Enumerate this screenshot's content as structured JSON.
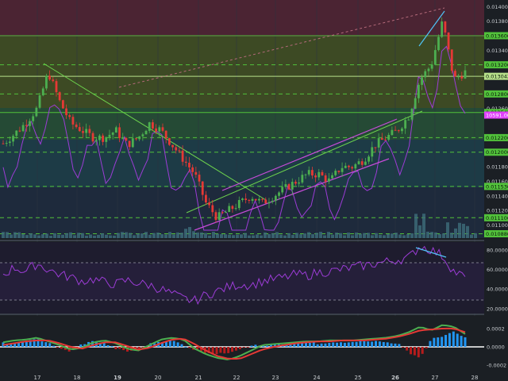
{
  "chart_data": [
    {
      "panel": "price",
      "type": "candlestick",
      "x_ticks": [
        "17",
        "18",
        "19",
        "20",
        "21",
        "22",
        "23",
        "24",
        "25",
        "26",
        "27",
        "28"
      ],
      "y_ticks": [
        "0.014000",
        "0.013800",
        "0.013600",
        "0.013400",
        "0.013200",
        "0.012800",
        "0.012600",
        "0.012200",
        "0.012000",
        "0.011800",
        "0.011600",
        "0.011400",
        "0.011200",
        "0.011000"
      ],
      "ylim": [
        0.01082,
        0.01409
      ],
      "horizontal_levels": [
        {
          "label": "0.013600",
          "value": 0.0136,
          "color": "#52c23b",
          "style": "solid"
        },
        {
          "label": "0.013042",
          "value": 0.013042,
          "color": "#b7e08a",
          "style": "solid"
        },
        {
          "label": "0.013200",
          "value": 0.0132,
          "color": "#52c23b",
          "style": "dashed"
        },
        {
          "label": "0.012800",
          "value": 0.0128,
          "color": "#52c23b",
          "style": "dashed"
        },
        {
          "label": "0.012545",
          "value": 0.012545,
          "color": "#52c23b",
          "style": "solid"
        },
        {
          "label": "0.012200",
          "value": 0.0122,
          "color": "#52c23b",
          "style": "dashed"
        },
        {
          "label": "0.012000",
          "value": 0.012,
          "color": "#52c23b",
          "style": "dashed"
        },
        {
          "label": "0.011530",
          "value": 0.01153,
          "color": "#52c23b",
          "style": "dashed"
        },
        {
          "label": "0.011100",
          "value": 0.0111,
          "color": "#52c23b",
          "style": "dashed"
        },
        {
          "label": "0.010880",
          "value": 0.01088,
          "color": "#52c23b",
          "style": "dashed"
        }
      ],
      "indicator_label": {
        "label": "10591.00",
        "color": "#e040fb"
      },
      "close_series": [
        0.01212,
        0.01225,
        0.0124,
        0.0126,
        0.0131,
        0.0127,
        0.0124,
        0.0123,
        0.0122,
        0.0122,
        0.0123,
        0.0121,
        0.0122,
        0.0124,
        0.0123,
        0.0121,
        0.0119,
        0.0117,
        0.0113,
        0.0111,
        0.0112,
        0.0113,
        0.0114,
        0.0113,
        0.0114,
        0.0115,
        0.0116,
        0.0117,
        0.0117,
        0.0116,
        0.0118,
        0.0118,
        0.0119,
        0.0121,
        0.0122,
        0.0123,
        0.0125,
        0.013,
        0.0132,
        0.0138,
        0.013,
        0.0131
      ]
    },
    {
      "panel": "rsi",
      "type": "line",
      "y_ticks": [
        "80.0000",
        "60.0000",
        "40.0000",
        "20.0000"
      ],
      "ylim": [
        15,
        88
      ],
      "levels": [
        70,
        30
      ],
      "values": [
        55,
        62,
        58,
        66,
        60,
        55,
        52,
        48,
        50,
        47,
        45,
        49,
        46,
        44,
        40,
        35,
        30,
        28,
        34,
        38,
        42,
        45,
        44,
        48,
        50,
        52,
        55,
        54,
        57,
        58,
        60,
        62,
        64,
        66,
        68,
        70,
        72,
        84,
        80,
        74,
        58,
        52
      ]
    },
    {
      "panel": "macd",
      "type": "histogram+line",
      "y_ticks": [
        "0.0002",
        "0.0000",
        "-0.0002"
      ],
      "ylim": [
        -0.00027,
        0.00028
      ],
      "histogram": [
        4e-05,
        3e-05,
        6e-05,
        8e-05,
        5e-05,
        -2e-05,
        -5e-05,
        3e-05,
        6e-05,
        4e-05,
        -2e-05,
        -5e-05,
        -3e-05,
        3e-05,
        6e-05,
        7e-05,
        2e-05,
        -3e-05,
        -6e-05,
        -8e-05,
        -6e-05,
        -2e-05,
        2e-05,
        1e-05,
        3e-05,
        2e-05,
        4e-05,
        5e-05,
        3e-05,
        4e-05,
        5e-05,
        6e-05,
        7e-05,
        6e-05,
        5e-05,
        4e-05,
        -6e-05,
        -0.00012,
        8e-05,
        0.00012,
        0.00016,
        0.0001
      ],
      "macd_line": [
        5e-05,
        7e-05,
        8e-05,
        0.0001,
        6e-05,
        2e-05,
        -3e-05,
        -1e-05,
        5e-05,
        7e-05,
        4e-05,
        -2e-05,
        -4e-05,
        2e-05,
        8e-05,
        0.0001,
        8e-05,
        -2e-05,
        -8e-05,
        -0.00012,
        -0.00014,
        -0.0001,
        -4e-05,
        2e-05,
        3e-05,
        4e-05,
        5e-05,
        6e-05,
        6e-05,
        7e-05,
        7e-05,
        7e-05,
        8e-05,
        9e-05,
        0.0001,
        0.00012,
        0.00016,
        0.00022,
        0.00018,
        0.00024,
        0.00022,
        0.00014
      ],
      "signal_line": [
        2e-05,
        4e-05,
        6e-05,
        7e-05,
        7e-05,
        4e-05,
        0.0,
        -2e-05,
        2e-05,
        5e-05,
        5e-05,
        1e-05,
        -3e-05,
        -1e-05,
        4e-05,
        8e-05,
        9e-05,
        3e-05,
        -4e-05,
        -0.0001,
        -0.00013,
        -0.00013,
        -8e-05,
        -3e-05,
        0.0,
        2e-05,
        4e-05,
        5e-05,
        6e-05,
        6e-05,
        7e-05,
        7e-05,
        7e-05,
        8e-05,
        9e-05,
        0.00011,
        0.00014,
        0.00018,
        0.00019,
        0.0002,
        0.0002,
        0.00016
      ]
    }
  ],
  "colors": {
    "bull": "#4caf50",
    "bear": "#e53935",
    "grid": "#2c3440",
    "axis_text": "#c8ccd0",
    "level": "#52c23b",
    "indicator": "#9c3cd6",
    "channel": "#c74bd9",
    "trend": "#6dd34d",
    "annotation": "#4fc3f7"
  }
}
